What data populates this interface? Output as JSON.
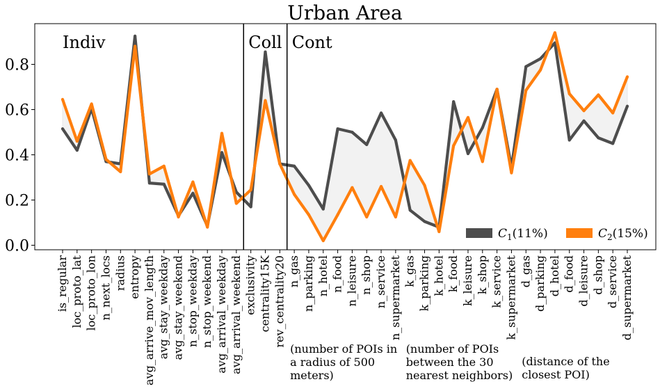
{
  "chart_data": {
    "type": "line",
    "title": "Urban Area",
    "xlabel": "",
    "ylabel": "",
    "ylim": [
      -0.02,
      0.98
    ],
    "yticks": [
      0.0,
      0.2,
      0.4,
      0.6,
      0.8
    ],
    "ytick_labels": [
      "0.0",
      "0.2",
      "0.4",
      "0.6",
      "0.8"
    ],
    "grid": false,
    "legend_position": "bottom-right",
    "categories": [
      "is_regular",
      "loc_proto_lat",
      "loc_proto_lon",
      "n_next_locs",
      "radius",
      "entropy",
      "avg_arrive_mov_length",
      "avg_stay_weekday",
      "avg_stay_weekend",
      "n_stop_weekday",
      "n_stop_weekend",
      "avg_arrival_weekday",
      "avg_arrival_weekend",
      "exclusivity",
      "centrality15K",
      "rev_centrality20",
      "n_gas",
      "n_parking",
      "n_hotel",
      "n_food",
      "n_leisure",
      "n_shop",
      "n_service",
      "n_supermarket",
      "k_gas",
      "k_parking",
      "k_hotel",
      "k_food",
      "k_leisure",
      "k_shop",
      "k_service",
      "k_supermarket",
      "d_gas",
      "d_parking",
      "d_hotel",
      "d_food",
      "d_leisure",
      "d_shop",
      "d_service",
      "d_supermarket"
    ],
    "series": [
      {
        "name": "C1(11%)",
        "label_main": "C",
        "label_sub": "1",
        "label_rest": "(11%)",
        "color": "#4d4d4d",
        "values": [
          0.515,
          0.42,
          0.605,
          0.37,
          0.36,
          0.925,
          0.275,
          0.27,
          0.13,
          0.23,
          0.085,
          0.41,
          0.235,
          0.17,
          0.855,
          0.36,
          0.35,
          0.265,
          0.16,
          0.515,
          0.5,
          0.445,
          0.585,
          0.465,
          0.155,
          0.105,
          0.08,
          0.635,
          0.405,
          0.52,
          0.69,
          0.345,
          0.79,
          0.825,
          0.895,
          0.465,
          0.55,
          0.475,
          0.45,
          0.615
        ]
      },
      {
        "name": "C2(15%)",
        "label_main": "C",
        "label_sub": "2",
        "label_rest": "(15%)",
        "color": "#ff7f0e",
        "values": [
          0.645,
          0.46,
          0.625,
          0.38,
          0.325,
          0.88,
          0.315,
          0.35,
          0.125,
          0.28,
          0.08,
          0.495,
          0.185,
          0.245,
          0.64,
          0.36,
          0.225,
          0.135,
          0.02,
          0.135,
          0.255,
          0.125,
          0.26,
          0.125,
          0.375,
          0.265,
          0.06,
          0.44,
          0.565,
          0.37,
          0.69,
          0.32,
          0.685,
          0.775,
          0.94,
          0.67,
          0.595,
          0.665,
          0.585,
          0.745
        ]
      }
    ],
    "section_dividers_after_index": [
      12,
      15
    ],
    "section_labels": [
      "Indiv",
      "Coll",
      "Cont"
    ],
    "annotations": [
      {
        "lines": [
          "(number of POIs in",
          "a radius of 500",
          "meters)"
        ]
      },
      {
        "lines": [
          "(number of POIs",
          "between the 30",
          "nearest neighbors)"
        ]
      },
      {
        "lines": [
          "(distance of the",
          "closest POI)"
        ]
      }
    ]
  }
}
